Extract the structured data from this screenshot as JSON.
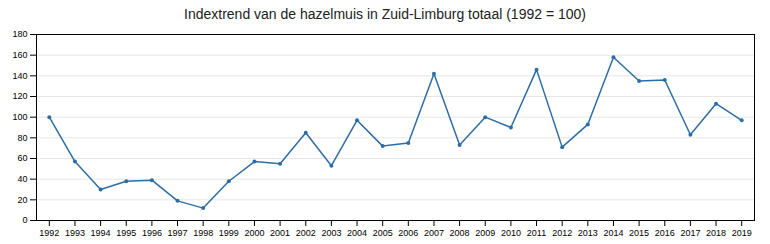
{
  "chart_data": {
    "type": "line",
    "title": "Indextrend van de hazelmuis in Zuid-Limburg totaal (1992 = 100)",
    "x": [
      1992,
      1993,
      1994,
      1995,
      1996,
      1997,
      1998,
      1999,
      2000,
      2001,
      2002,
      2003,
      2004,
      2005,
      2006,
      2007,
      2008,
      2009,
      2010,
      2011,
      2012,
      2013,
      2014,
      2015,
      2016,
      2017,
      2018,
      2019
    ],
    "values": [
      100,
      57,
      30,
      38,
      39,
      19,
      12,
      38,
      57,
      55,
      85,
      53,
      97,
      72,
      75,
      142,
      73,
      100,
      90,
      146,
      71,
      93,
      158,
      135,
      136,
      83,
      113,
      97
    ],
    "color": "#2e6da4",
    "marker": "circle",
    "xlim": [
      1991.5,
      2019.5
    ],
    "xticks": [
      1992,
      1993,
      1994,
      1995,
      1996,
      1997,
      1998,
      1999,
      2000,
      2001,
      2002,
      2003,
      2004,
      2005,
      2006,
      2007,
      2008,
      2009,
      2010,
      2011,
      2012,
      2013,
      2014,
      2015,
      2016,
      2017,
      2018,
      2019
    ],
    "ylim": [
      0,
      180
    ],
    "yticks": [
      0,
      20,
      40,
      60,
      80,
      100,
      120,
      140,
      160,
      180
    ],
    "grid": true
  }
}
